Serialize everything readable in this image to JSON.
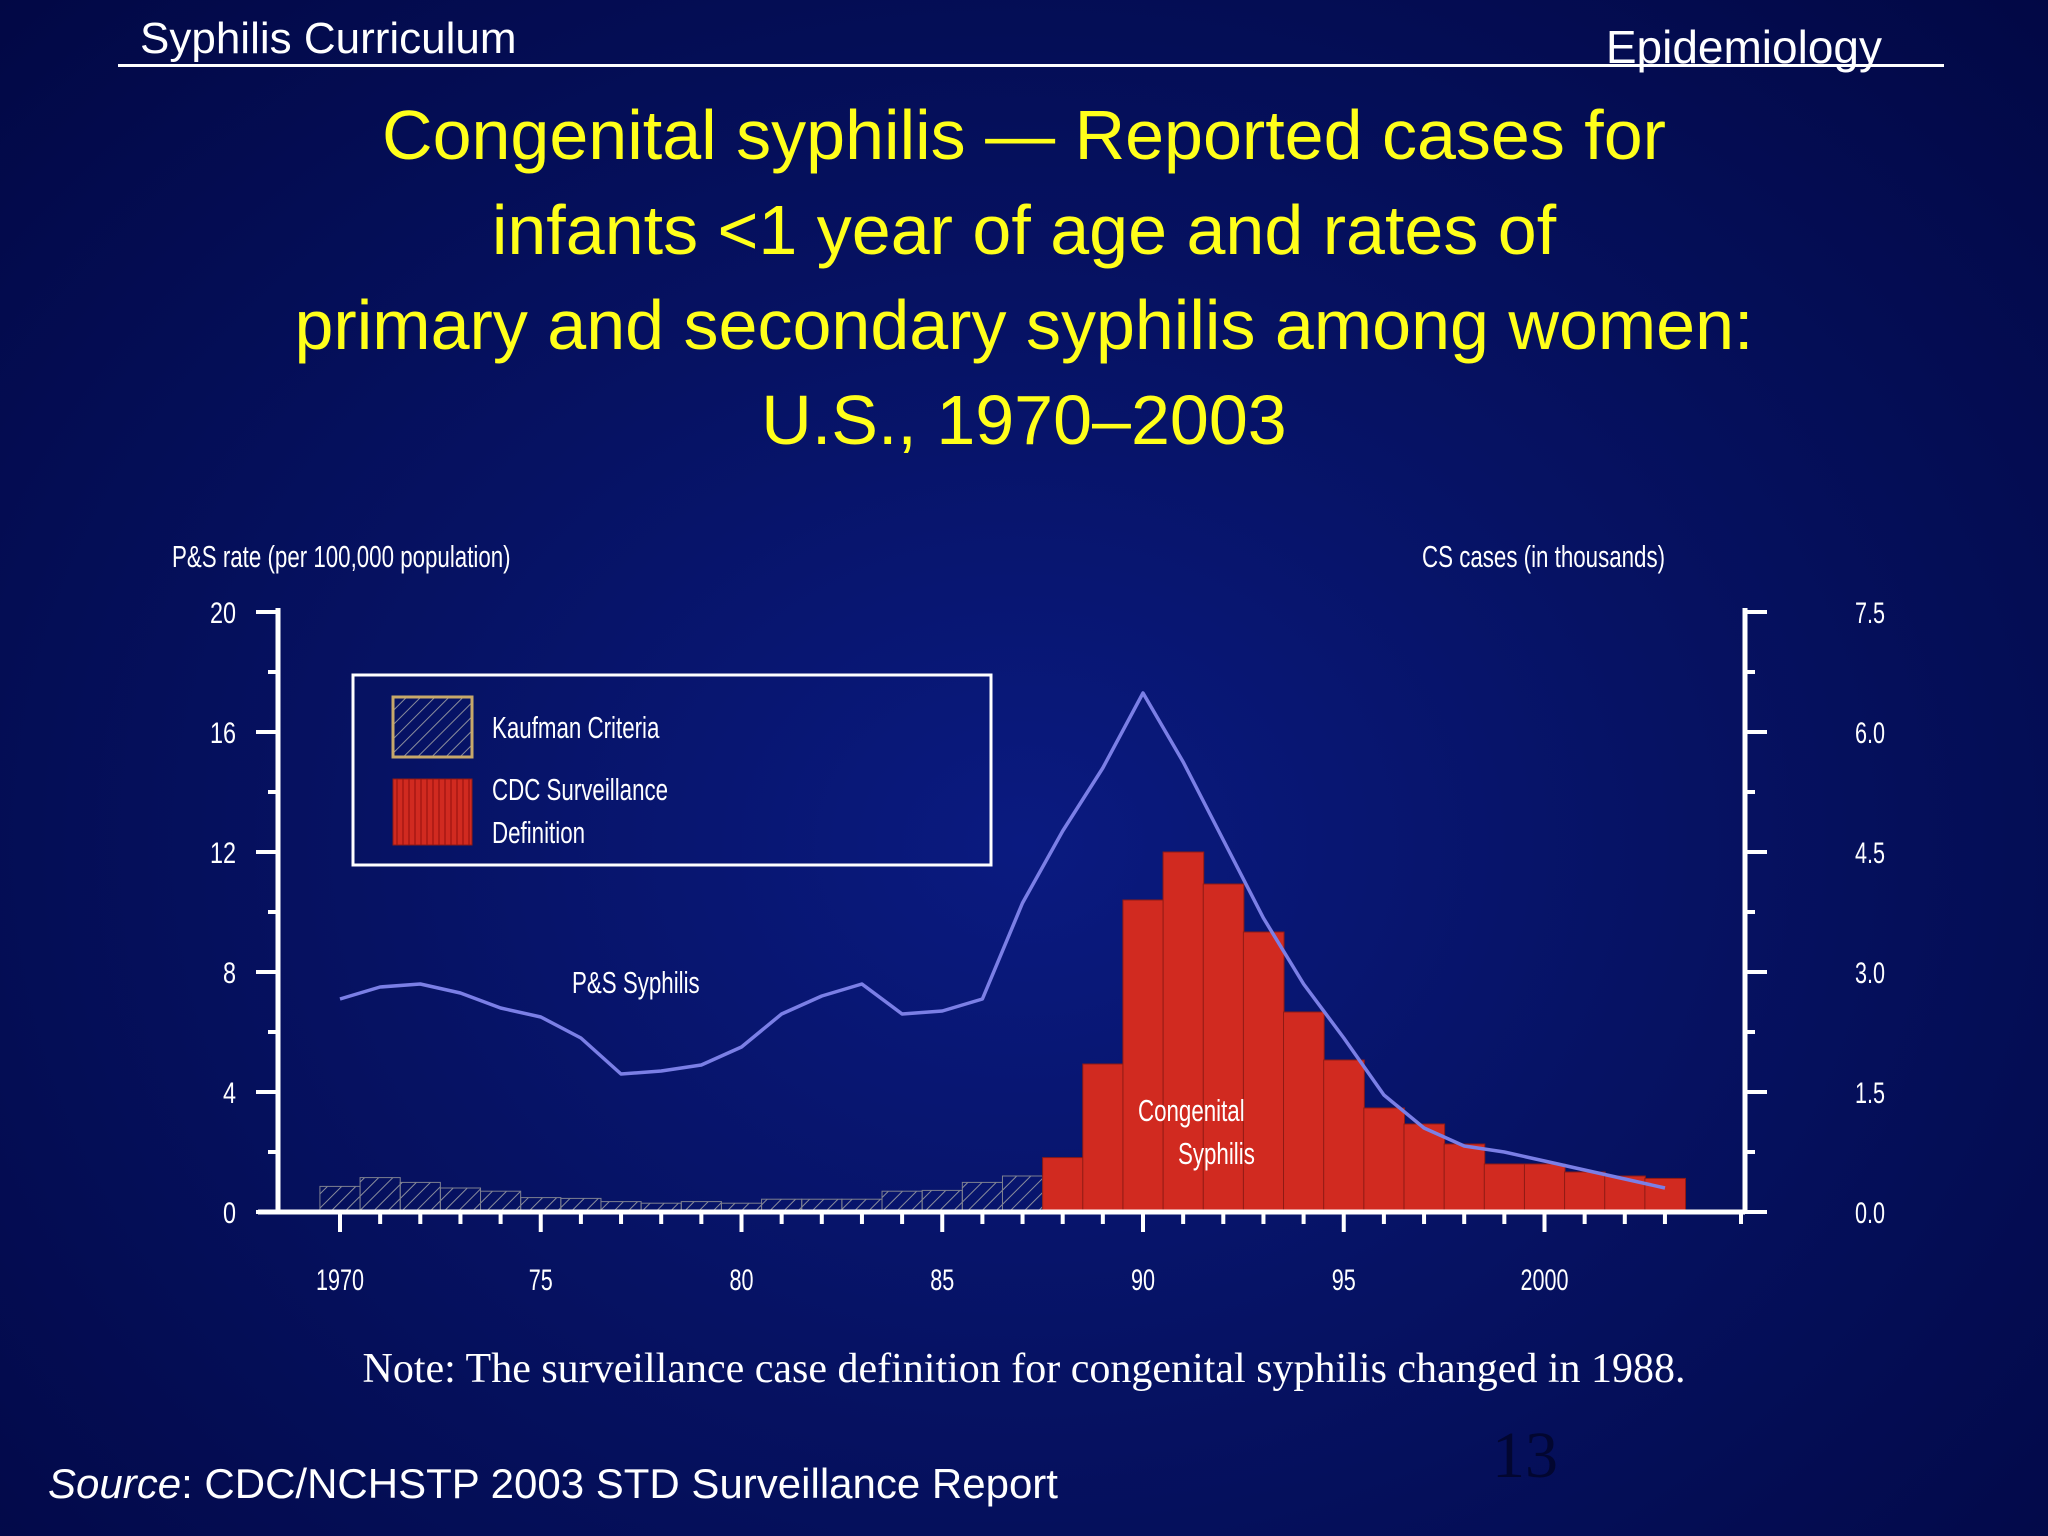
{
  "header": {
    "left": "Syphilis Curriculum",
    "right": "Epidemiology"
  },
  "title_lines": [
    "Congenital syphilis — Reported cases for",
    "infants <1 year of age and rates of",
    "primary and secondary syphilis among women:",
    "U.S., 1970–2003"
  ],
  "note": "Note: The surveillance case definition for congenital syphilis changed in 1988.",
  "page_number": "13",
  "source": {
    "label": "Source",
    "text": ": CDC/NCHSTP 2003 STD Surveillance Report"
  },
  "colors": {
    "background": "#061263",
    "title": "#ffff1a",
    "line": "#7b7fe6",
    "bar_cdc": "#d12a20",
    "bar_kaufman_hatch": "#8a8d9c",
    "legend_kaufman_border": "#c7a86a",
    "axes": "#ffffff"
  },
  "chart_data": {
    "type": "bar",
    "left_axis_label": "P&S rate (per 100,000 population)",
    "right_axis_label": "CS cases (in thousands)",
    "left_ylim": [
      0,
      20
    ],
    "left_ticks": [
      "0",
      "4",
      "8",
      "12",
      "16",
      "20"
    ],
    "right_ylim": [
      0,
      7.5
    ],
    "right_ticks": [
      "0.0",
      "1.5",
      "3.0",
      "4.5",
      "6.0",
      "7.5"
    ],
    "xlim": [
      1970,
      2003
    ],
    "x_tick_labels": [
      "1970",
      "75",
      "80",
      "85",
      "90",
      "95",
      "2000"
    ],
    "x_tick_values": [
      1970,
      1975,
      1980,
      1985,
      1990,
      1995,
      2000
    ],
    "legend": [
      {
        "label": "Kaufman Criteria",
        "style": "hatch"
      },
      {
        "label": "CDC Surveillance Definition",
        "label_lines": [
          "CDC Surveillance",
          "Definition"
        ],
        "style": "solid"
      }
    ],
    "annotations": {
      "ps_label": "P&S Syphilis",
      "cs_label_lines": [
        "Congenital",
        "Syphilis"
      ]
    },
    "series": [
      {
        "name": "P&S Syphilis",
        "axis": "left",
        "kind": "line",
        "x": [
          1970,
          1971,
          1972,
          1973,
          1974,
          1975,
          1976,
          1977,
          1978,
          1979,
          1980,
          1981,
          1982,
          1983,
          1984,
          1985,
          1986,
          1987,
          1988,
          1989,
          1990,
          1991,
          1992,
          1993,
          1994,
          1995,
          1996,
          1997,
          1998,
          1999,
          2000,
          2001,
          2002,
          2003
        ],
        "values": [
          7.1,
          7.5,
          7.6,
          7.3,
          6.8,
          6.5,
          5.8,
          4.6,
          4.7,
          4.9,
          5.5,
          6.6,
          7.2,
          7.6,
          6.6,
          6.7,
          7.1,
          10.3,
          12.7,
          14.8,
          17.3,
          15.0,
          12.4,
          9.8,
          7.6,
          5.8,
          3.9,
          2.8,
          2.2,
          2.0,
          1.7,
          1.4,
          1.1,
          0.8
        ]
      },
      {
        "name": "Kaufman Criteria",
        "axis": "right",
        "kind": "bar",
        "x": [
          1970,
          1971,
          1972,
          1973,
          1974,
          1975,
          1976,
          1977,
          1978,
          1979,
          1980,
          1981,
          1982,
          1983,
          1984,
          1985,
          1986,
          1987
        ],
        "values": [
          0.32,
          0.43,
          0.37,
          0.3,
          0.26,
          0.18,
          0.17,
          0.13,
          0.11,
          0.13,
          0.11,
          0.16,
          0.16,
          0.16,
          0.26,
          0.27,
          0.37,
          0.45
        ]
      },
      {
        "name": "CDC Surveillance Definition",
        "axis": "right",
        "kind": "bar",
        "x": [
          1988,
          1989,
          1990,
          1991,
          1992,
          1993,
          1994,
          1995,
          1996,
          1997,
          1998,
          1999,
          2000,
          2001,
          2002,
          2003
        ],
        "values": [
          0.68,
          1.85,
          3.9,
          4.5,
          4.1,
          3.5,
          2.5,
          1.9,
          1.3,
          1.1,
          0.85,
          0.6,
          0.6,
          0.5,
          0.45,
          0.42
        ]
      }
    ]
  }
}
